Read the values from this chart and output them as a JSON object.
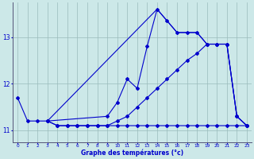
{
  "xlabel": "Graphe des températures (°c)",
  "bg_color": "#cce8e8",
  "grid_color": "#99bbbb",
  "line_color": "#0000cc",
  "ylim": [
    10.75,
    13.75
  ],
  "xlim": [
    -0.5,
    23.5
  ],
  "yticks": [
    11,
    12,
    13
  ],
  "xticks": [
    0,
    1,
    2,
    3,
    4,
    5,
    6,
    7,
    8,
    9,
    10,
    11,
    12,
    13,
    14,
    15,
    16,
    17,
    18,
    19,
    20,
    21,
    22,
    23
  ],
  "curves": [
    {
      "x": [
        0,
        1,
        2,
        3,
        4,
        5,
        6,
        7,
        8,
        9,
        10,
        11,
        12,
        13,
        14,
        15,
        16,
        17,
        18,
        19,
        20,
        21,
        22,
        23
      ],
      "y": [
        11.7,
        11.2,
        11.2,
        11.2,
        11.1,
        11.1,
        11.1,
        11.1,
        11.1,
        11.1,
        11.1,
        11.1,
        11.1,
        11.1,
        11.1,
        11.1,
        11.1,
        11.1,
        11.1,
        11.1,
        11.1,
        11.1,
        11.1,
        11.1
      ],
      "marker": "D",
      "ms": 2.0
    },
    {
      "x": [
        3,
        4,
        5,
        6,
        7,
        8,
        9,
        10,
        11,
        12,
        13,
        14,
        15,
        16,
        17,
        18,
        19,
        20,
        21,
        22,
        23
      ],
      "y": [
        11.2,
        11.1,
        11.1,
        11.1,
        11.1,
        11.1,
        11.1,
        11.2,
        11.3,
        11.5,
        11.7,
        11.9,
        12.1,
        12.3,
        12.5,
        12.65,
        12.85,
        12.85,
        12.85,
        11.3,
        11.1
      ],
      "marker": "D",
      "ms": 2.0
    },
    {
      "x": [
        3,
        9,
        10,
        11,
        12,
        13,
        14,
        15,
        16,
        17,
        18,
        19,
        20,
        21,
        22,
        23
      ],
      "y": [
        11.2,
        11.3,
        11.6,
        12.1,
        11.9,
        12.8,
        13.6,
        13.35,
        13.1,
        13.1,
        13.1,
        12.85,
        12.85,
        12.85,
        11.3,
        11.1
      ],
      "marker": "D",
      "ms": 2.0
    },
    {
      "x": [
        3,
        14,
        15,
        16,
        17,
        18,
        19,
        20,
        21,
        22,
        23
      ],
      "y": [
        11.2,
        13.6,
        13.35,
        13.1,
        13.1,
        13.1,
        12.85,
        12.85,
        12.85,
        11.3,
        11.1
      ],
      "marker": "",
      "ms": 0
    }
  ]
}
